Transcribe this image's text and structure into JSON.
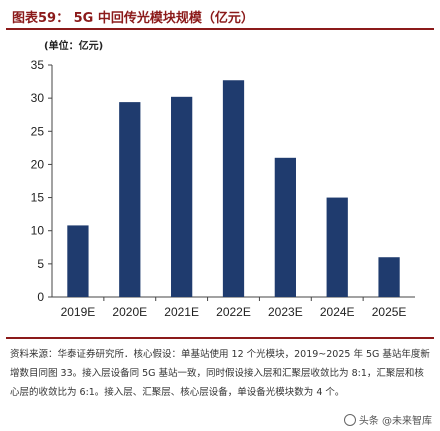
{
  "figure": {
    "title": "图表59：  5G 中回传光模块规模（亿元）",
    "unit": "(单位：亿元)",
    "source": "资料来源：华泰证券研究所．核心假设：单基站使用 12 个光模块，2019~2025 年 5G 基站年度新增数目同图 33。接入层设备同 5G 基站一致，同时假设接入层和汇聚层收敛比为 8:1，汇聚层和核心层的收敛比为 6:1。接入层、汇聚层、核心层设备，单设备光模块数为 4 个。",
    "watermark": "头条 @未来智库"
  },
  "chart_data": {
    "type": "bar",
    "title": "5G 中回传光模块规模（亿元）",
    "xlabel": "",
    "ylabel": "",
    "categories": [
      "2019E",
      "2020E",
      "2021E",
      "2022E",
      "2023E",
      "2024E",
      "2025E"
    ],
    "values": [
      10.8,
      29.4,
      30.2,
      32.7,
      21.0,
      15.0,
      6.0
    ],
    "ylim": [
      0,
      35
    ],
    "yticks": [
      0,
      5,
      10,
      15,
      20,
      25,
      30,
      35
    ],
    "grid": false,
    "colors": {
      "bar": "#1f3b6e"
    }
  }
}
